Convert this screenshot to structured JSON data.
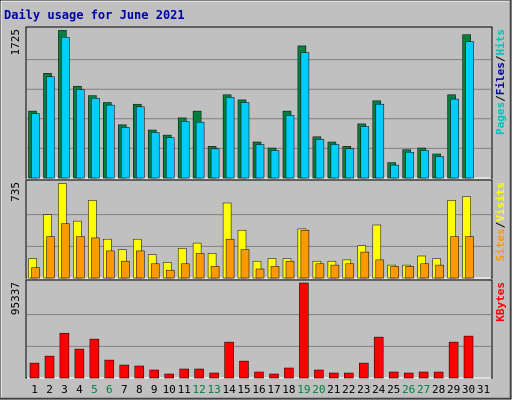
{
  "colors": {
    "frame_bg": "#c0c0c0",
    "title": "#0000aa",
    "grid": "#808080",
    "hits": "#00ccff",
    "files": "#008040",
    "pages": "#00c0c0",
    "visits": "#ffff00",
    "sites": "#ff9900",
    "kbytes": "#ff0000",
    "day_label": "#000000",
    "weekend_label": "#008040"
  },
  "chart_data": {
    "type": "bar",
    "title": "Daily usage for June 2021",
    "days": [
      "1",
      "2",
      "3",
      "4",
      "5",
      "6",
      "7",
      "8",
      "9",
      "10",
      "11",
      "12",
      "13",
      "14",
      "15",
      "16",
      "17",
      "18",
      "19",
      "20",
      "21",
      "22",
      "23",
      "24",
      "25",
      "26",
      "27",
      "28",
      "29",
      "30",
      "31"
    ],
    "weekend_days": [
      "5",
      "6",
      "12",
      "13",
      "19",
      "20",
      "26",
      "27"
    ],
    "panels": [
      {
        "id": "hits_files_pages",
        "max_label": "1725",
        "ylim": [
          0,
          1725
        ],
        "legend": [
          {
            "name": "Pages",
            "color": "#00c0c0"
          },
          {
            "name": "/",
            "color": "#000000"
          },
          {
            "name": "Files",
            "color": "#0000aa"
          },
          {
            "name": "/",
            "color": "#000000"
          },
          {
            "name": "Hits",
            "color": "#00c0c0"
          }
        ],
        "series": [
          {
            "name": "Files",
            "color": "#008040",
            "values": [
              780,
              1220,
              1720,
              1070,
              960,
              880,
              620,
              860,
              560,
              500,
              700,
              780,
              370,
              970,
              910,
              420,
              350,
              780,
              1540,
              480,
              420,
              370,
              630,
              900,
              180,
              330,
              350,
              280,
              970,
              1670,
              0
            ]
          },
          {
            "name": "Hits",
            "color": "#00ccff",
            "values": [
              750,
              1180,
              1640,
              1030,
              930,
              850,
              590,
              830,
              530,
              470,
              660,
              650,
              340,
              940,
              880,
              390,
              320,
              730,
              1460,
              450,
              390,
              340,
              600,
              860,
              150,
              300,
              320,
              250,
              920,
              1590,
              0
            ]
          }
        ]
      },
      {
        "id": "visits_sites",
        "max_label": "735",
        "ylim": [
          0,
          735
        ],
        "legend": [
          {
            "name": "Sites",
            "color": "#ff9900"
          },
          {
            "name": "/",
            "color": "#000000"
          },
          {
            "name": "Visits",
            "color": "#ffff00"
          }
        ],
        "series": [
          {
            "name": "Visits",
            "color": "#ffff00",
            "values": [
              150,
              490,
              730,
              440,
              600,
              300,
              220,
              300,
              180,
              120,
              230,
              270,
              190,
              580,
              370,
              130,
              150,
              150,
              380,
              130,
              130,
              140,
              250,
              410,
              100,
              100,
              170,
              150,
              600,
              630,
              0
            ]
          },
          {
            "name": "Sites",
            "color": "#ff9900",
            "values": [
              80,
              320,
              420,
              320,
              310,
              210,
              130,
              210,
              110,
              60,
              110,
              190,
              90,
              300,
              220,
              70,
              90,
              130,
              370,
              110,
              100,
              110,
              200,
              140,
              90,
              90,
              110,
              100,
              320,
              320,
              0
            ]
          }
        ]
      },
      {
        "id": "kbytes",
        "max_label": "95337",
        "ylim": [
          0,
          95337
        ],
        "legend": [
          {
            "name": "KBytes",
            "color": "#ff0000"
          }
        ],
        "series": [
          {
            "name": "KBytes",
            "color": "#ff0000",
            "values": [
              15000,
              22000,
              45000,
              29000,
              39000,
              18000,
              13000,
              12000,
              8000,
              4000,
              9000,
              9000,
              5000,
              36000,
              17000,
              6000,
              4000,
              10000,
              95337,
              8000,
              5000,
              5000,
              15000,
              41000,
              6000,
              5000,
              6000,
              6000,
              36000,
              42000,
              0
            ]
          }
        ]
      }
    ]
  }
}
